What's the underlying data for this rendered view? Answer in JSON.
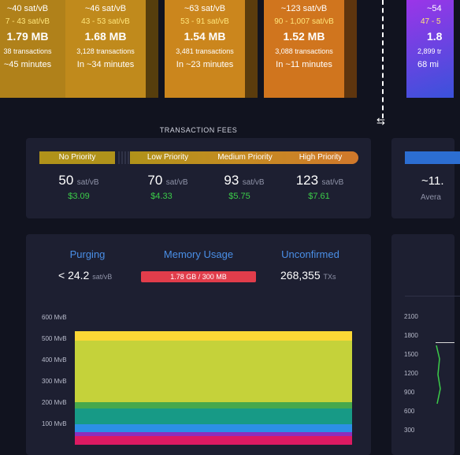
{
  "mempool_blocks": [
    {
      "fee_median": "~40 sat/vB",
      "fee_range": "7 - 43 sat/vB",
      "size": "1.79 MB",
      "tx_count": "38 transactions",
      "eta": "~45 minutes",
      "color": "#b0811a"
    },
    {
      "fee_median": "~46 sat/vB",
      "fee_range": "43 - 53 sat/vB",
      "size": "1.68 MB",
      "tx_count": "3,128 transactions",
      "eta": "In ~34 minutes",
      "color": "#c08a1c"
    },
    {
      "fee_median": "~63 sat/vB",
      "fee_range": "53 - 91 sat/vB",
      "size": "1.54 MB",
      "tx_count": "3,481 transactions",
      "eta": "In ~23 minutes",
      "color": "#cb861d"
    },
    {
      "fee_median": "~123 sat/vB",
      "fee_range": "90 - 1,007 sat/vB",
      "size": "1.52 MB",
      "tx_count": "3,088 transactions",
      "eta": "In ~11 minutes",
      "color": "#d0751e"
    }
  ],
  "mined_block": {
    "fee_median": "~54",
    "fee_range": "47 - 5",
    "size": "1.8",
    "tx_count": "2,899 tr",
    "eta": "68 mi"
  },
  "transaction_fees": {
    "section_label": "TRANSACTION FEES",
    "labels": {
      "no": "No Priority",
      "low": "Low Priority",
      "medium": "Medium Priority",
      "high": "High Priority"
    },
    "unit": "sat/vB",
    "no": {
      "value": "50",
      "usd": "$3.09"
    },
    "low": {
      "value": "70",
      "usd": "$4.33"
    },
    "medium": {
      "value": "93",
      "usd": "$5.75"
    },
    "high": {
      "value": "123",
      "usd": "$7.61"
    }
  },
  "difficulty_card": {
    "value": "~11.",
    "label": "Avera"
  },
  "mempool_stats": {
    "purging_title": "Purging",
    "purging_prefix": "< 24.2",
    "purging_unit": "sat/vB",
    "memory_title": "Memory Usage",
    "memory_text": "1.78 GB / 300 MB",
    "unconfirmed_title": "Unconfirmed",
    "unconfirmed_value": "268,355",
    "unconfirmed_unit": "TXs"
  },
  "chart_data": {
    "type": "area",
    "y_ticks": [
      "600 MvB",
      "500 MvB",
      "400 MvB",
      "300 MvB",
      "200 MvB",
      "100 MvB"
    ],
    "ylim": [
      0,
      600
    ],
    "series": [
      {
        "color": "#dc1a62",
        "value": 40
      },
      {
        "color": "#8c2fbd",
        "value": 20
      },
      {
        "color": "#2c8fe6",
        "value": 35
      },
      {
        "color": "#179a86",
        "value": 75
      },
      {
        "color": "#46a84c",
        "value": 30
      },
      {
        "color": "#c5d23a",
        "value": 290
      },
      {
        "color": "#fbd735",
        "value": 45
      }
    ]
  },
  "right_chart": {
    "y_ticks": [
      "2100",
      "1800",
      "1500",
      "1200",
      "900",
      "600",
      "300"
    ]
  }
}
